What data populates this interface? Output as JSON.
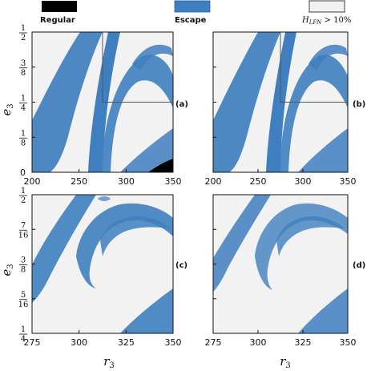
{
  "legend": [
    {
      "label": "Regular",
      "color": "#000000"
    },
    {
      "label": "Escape",
      "color": "#3f7fbf"
    },
    {
      "label": "H_LFN > 10%",
      "label_main": "H",
      "label_sub": "LFN",
      "label_rest": " > 10%",
      "color": "#f2f2f2"
    }
  ],
  "colors": {
    "regular": "#000000",
    "escape": "#3f7fbf",
    "hlfn": "#f2f2f2",
    "guide": "#555555"
  },
  "chart_data": [
    {
      "type": "heatmap",
      "id": "a",
      "panel_label": "(a)",
      "xlabel": "r3",
      "ylabel": "e3",
      "xlim": [
        200,
        350
      ],
      "ylim": [
        0,
        0.5
      ],
      "xticks": [
        200,
        250,
        300,
        350
      ],
      "xticklabels": [
        "200",
        "250",
        "300",
        "350"
      ],
      "yticks": [
        {
          "value": 0,
          "label": "0"
        },
        {
          "value": 0.125,
          "num": "1",
          "den": "8"
        },
        {
          "value": 0.25,
          "num": "1",
          "den": "4"
        },
        {
          "value": 0.375,
          "num": "3",
          "den": "8"
        },
        {
          "value": 0.5,
          "num": "1",
          "den": "2"
        }
      ],
      "zoom_box": [
        275,
        350,
        0.25,
        0.5
      ]
    },
    {
      "type": "heatmap",
      "id": "b",
      "panel_label": "(b)",
      "xlabel": "",
      "ylabel": "",
      "xlim": [
        200,
        350
      ],
      "ylim": [
        0,
        0.5
      ],
      "xticks": [
        200,
        250,
        300,
        350
      ],
      "xticklabels": [
        "200",
        "250",
        "300",
        "350"
      ],
      "yticks": [],
      "zoom_box": [
        275,
        350,
        0.25,
        0.5
      ]
    },
    {
      "type": "heatmap",
      "id": "c",
      "panel_label": "(c)",
      "xlabel": "r3",
      "ylabel": "e3",
      "xlim": [
        275,
        350
      ],
      "ylim": [
        0.25,
        0.5
      ],
      "xticks": [
        275,
        300,
        325,
        350
      ],
      "xticklabels": [
        "275",
        "300",
        "325",
        "350"
      ],
      "yticks": [
        {
          "value": 0.25,
          "num": "1",
          "den": "4"
        },
        {
          "value": 0.3125,
          "num": "5",
          "den": "16"
        },
        {
          "value": 0.375,
          "num": "3",
          "den": "8"
        },
        {
          "value": 0.4375,
          "num": "7",
          "den": "16"
        },
        {
          "value": 0.5,
          "num": "1",
          "den": "2"
        }
      ]
    },
    {
      "type": "heatmap",
      "id": "d",
      "panel_label": "(d)",
      "xlabel": "r3",
      "ylabel": "",
      "xlim": [
        275,
        350
      ],
      "ylim": [
        0.25,
        0.5
      ],
      "xticks": [
        275,
        300,
        325,
        350
      ],
      "xticklabels": [
        "275",
        "300",
        "325",
        "350"
      ],
      "yticks": []
    }
  ]
}
